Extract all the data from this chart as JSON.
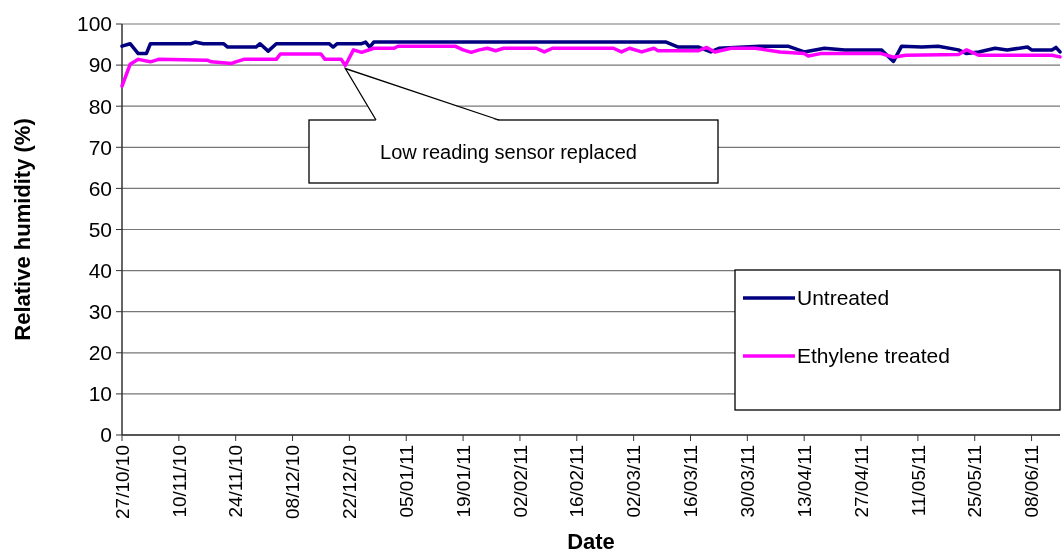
{
  "chart_data": {
    "type": "line",
    "xlabel": "Date",
    "ylabel": "Relative humidity (%)",
    "xlim": [
      "2010-10-27",
      "2011-06-15"
    ],
    "xticks": [
      {
        "value": "2010-10-27",
        "label": "27/10/10"
      },
      {
        "value": "2010-11-10",
        "label": "10/11/10"
      },
      {
        "value": "2010-11-24",
        "label": "24/11/10"
      },
      {
        "value": "2010-12-08",
        "label": "08/12/10"
      },
      {
        "value": "2010-12-22",
        "label": "22/12/10"
      },
      {
        "value": "2011-01-05",
        "label": "05/01/11"
      },
      {
        "value": "2011-01-19",
        "label": "19/01/11"
      },
      {
        "value": "2011-02-02",
        "label": "02/02/11"
      },
      {
        "value": "2011-02-16",
        "label": "16/02/11"
      },
      {
        "value": "2011-03-02",
        "label": "02/03/11"
      },
      {
        "value": "2011-03-16",
        "label": "16/03/11"
      },
      {
        "value": "2011-03-30",
        "label": "30/03/11"
      },
      {
        "value": "2011-04-13",
        "label": "13/04/11"
      },
      {
        "value": "2011-04-27",
        "label": "27/04/11"
      },
      {
        "value": "2011-05-11",
        "label": "11/05/11"
      },
      {
        "value": "2011-05-25",
        "label": "25/05/11"
      },
      {
        "value": "2011-06-08",
        "label": "08/06/11"
      }
    ],
    "ylim": [
      0,
      100
    ],
    "yticks": [
      0,
      10,
      20,
      30,
      40,
      50,
      60,
      70,
      80,
      90,
      100
    ],
    "grid": "y",
    "legend": "bottom right",
    "marker": "none",
    "line_style": "solid",
    "annotations": [
      {
        "text": "Low reading sensor replaced",
        "x": "2010-12-21",
        "y": 89.9
      }
    ],
    "series": [
      {
        "name": "Untreated",
        "color": "#000080",
        "x": [
          "2010-10-27",
          "2010-10-29",
          "2010-10-31",
          "2010-11-02",
          "2010-11-03",
          "2010-11-13",
          "2010-11-14",
          "2010-11-16",
          "2010-11-21",
          "2010-11-22",
          "2010-11-29",
          "2010-11-30",
          "2010-12-02",
          "2010-12-04",
          "2010-12-17",
          "2010-12-18",
          "2010-12-19",
          "2010-12-25",
          "2010-12-26",
          "2010-12-27",
          "2010-12-28",
          "2011-03-10",
          "2011-03-13",
          "2011-03-18",
          "2011-03-21",
          "2011-03-23",
          "2011-04-02",
          "2011-04-09",
          "2011-04-13",
          "2011-04-18",
          "2011-04-23",
          "2011-05-02",
          "2011-05-05",
          "2011-05-07",
          "2011-05-12",
          "2011-05-16",
          "2011-05-21",
          "2011-05-23",
          "2011-05-26",
          "2011-05-30",
          "2011-06-02",
          "2011-06-07",
          "2011-06-08",
          "2011-06-13",
          "2011-06-14",
          "2011-06-15"
        ],
        "values": [
          94.6,
          95.2,
          92.8,
          92.8,
          95.2,
          95.2,
          95.6,
          95.2,
          95.2,
          94.4,
          94.4,
          95.2,
          93.4,
          95.2,
          95.2,
          94.4,
          95.2,
          95.2,
          95.6,
          94.4,
          95.6,
          95.6,
          94.4,
          94.4,
          93.2,
          94.1,
          94.6,
          94.6,
          93.2,
          94.1,
          93.7,
          93.7,
          90.9,
          94.6,
          94.4,
          94.6,
          93.7,
          92.8,
          93.2,
          94.1,
          93.7,
          94.4,
          93.7,
          93.7,
          94.3,
          93.2
        ]
      },
      {
        "name": "Ethylene treated",
        "color": "#ff00ff",
        "x": [
          "2010-10-27",
          "2010-10-29",
          "2010-10-31",
          "2010-11-03",
          "2010-11-05",
          "2010-11-17",
          "2010-11-18",
          "2010-11-23",
          "2010-11-24",
          "2010-11-26",
          "2010-12-04",
          "2010-12-05",
          "2010-12-15",
          "2010-12-16",
          "2010-12-20",
          "2010-12-21",
          "2010-12-23",
          "2010-12-25",
          "2010-12-28",
          "2011-01-02",
          "2011-01-03",
          "2011-01-17",
          "2011-01-19",
          "2011-01-21",
          "2011-01-23",
          "2011-01-25",
          "2011-01-27",
          "2011-01-29",
          "2011-02-06",
          "2011-02-08",
          "2011-02-10",
          "2011-02-17",
          "2011-02-25",
          "2011-02-27",
          "2011-03-01",
          "2011-03-04",
          "2011-03-07",
          "2011-03-08",
          "2011-03-18",
          "2011-03-20",
          "2011-03-22",
          "2011-03-26",
          "2011-04-01",
          "2011-04-07",
          "2011-04-13",
          "2011-04-14",
          "2011-04-17",
          "2011-05-02",
          "2011-05-05",
          "2011-05-08",
          "2011-05-21",
          "2011-05-23",
          "2011-05-26",
          "2011-06-13",
          "2011-06-15"
        ],
        "values": [
          84.9,
          90.2,
          91.4,
          90.8,
          91.4,
          91.2,
          90.8,
          90.4,
          90.8,
          91.4,
          91.4,
          92.7,
          92.7,
          91.4,
          91.4,
          89.9,
          93.7,
          93.1,
          94.1,
          94.1,
          94.6,
          94.6,
          93.7,
          93.1,
          93.7,
          94.1,
          93.5,
          94.1,
          94.1,
          93.2,
          94.1,
          94.1,
          94.1,
          93.2,
          94.1,
          93.2,
          94.1,
          93.5,
          93.5,
          94.3,
          93.2,
          94.1,
          94.1,
          93.2,
          92.8,
          92.2,
          92.8,
          92.8,
          91.9,
          92.4,
          92.6,
          93.7,
          92.4,
          92.4,
          92
        ]
      }
    ]
  }
}
